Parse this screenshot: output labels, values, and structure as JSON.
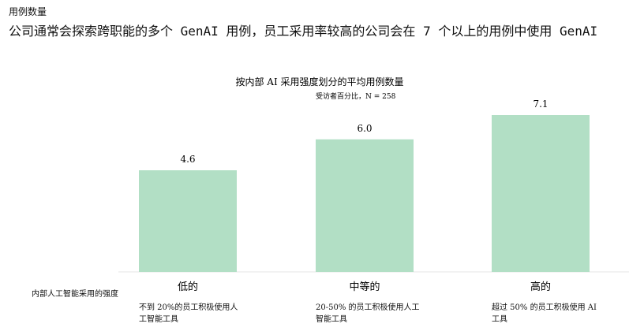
{
  "header": "用例数量",
  "headline": "公司通常会探索跨职能的多个 GenAI 用例，员工采用率较高的公司会在 7 个以上的用例中使用 GenAI",
  "chart_data": {
    "type": "bar",
    "title": "按内部 AI 采用强度划分的平均用例数量",
    "subtitle": "受访者百分比，N = 258",
    "x_label": "内部人工智能采用的强度",
    "categories": [
      "低的",
      "中等的",
      "高的"
    ],
    "category_notes": [
      "不到 20%的员工积极使用人工智能工具",
      "20-50% 的员工积极使用人工智能工具",
      "超过 50% 的员工积极使用 AI 工具"
    ],
    "values": [
      4.6,
      6.0,
      7.1
    ],
    "value_labels": [
      "4.6",
      "6.0",
      "7.1"
    ],
    "color": "#b2dfc5"
  }
}
